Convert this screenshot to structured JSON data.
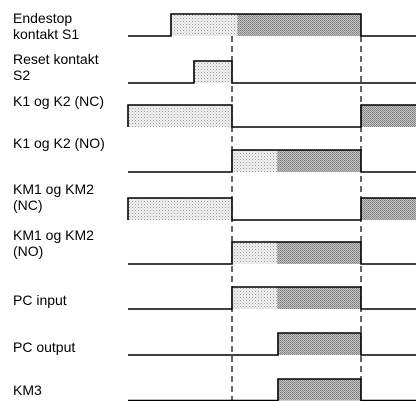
{
  "signals": [
    {
      "name": "sig-endestop",
      "label": "Endestop\nkontakt S1",
      "pulses": [
        {
          "from": 1.0,
          "to": 3.5,
          "shade": [
            "light",
            "dark"
          ]
        }
      ]
    },
    {
      "name": "sig-reset",
      "label": "Reset kontakt\nS2",
      "pulses": [
        {
          "from": 1.3,
          "to": 2.0,
          "shade": [
            "light"
          ]
        }
      ]
    },
    {
      "name": "sig-k1k2-nc",
      "label": "K1 og K2 (NC)",
      "pulses": [
        {
          "from": 0,
          "to": 2.0,
          "shade": [
            "light"
          ]
        },
        {
          "from": 3.5,
          "to": 4.0,
          "shade": [
            "dark"
          ]
        }
      ]
    },
    {
      "name": "sig-k1k2-no",
      "label": "K1 og K2 (NO)",
      "pulses": [
        {
          "from": 2.0,
          "to": 3.5,
          "shade": [
            "light",
            "dark"
          ]
        }
      ]
    },
    {
      "name": "sig-km1km2-nc",
      "label": "KM1 og KM2\n(NC)",
      "pulses": [
        {
          "from": 0,
          "to": 2.0,
          "shade": [
            "light"
          ]
        },
        {
          "from": 3.5,
          "to": 4.0,
          "shade": [
            "dark"
          ]
        }
      ]
    },
    {
      "name": "sig-km1km2-no",
      "label": "KM1 og KM2\n(NO)",
      "pulses": [
        {
          "from": 2.0,
          "to": 3.5,
          "shade": [
            "light",
            "dark"
          ]
        }
      ]
    },
    {
      "name": "sig-pc-input",
      "label": "PC input",
      "pulses": [
        {
          "from": 2.0,
          "to": 3.5,
          "shade": [
            "light",
            "dark"
          ]
        }
      ]
    },
    {
      "name": "sig-pc-output",
      "label": "PC output",
      "pulses": [
        {
          "from": 2.7,
          "to": 3.5,
          "shade": [
            "dark"
          ]
        }
      ]
    },
    {
      "name": "sig-km3",
      "label": "KM3",
      "pulses": [
        {
          "from": 2.7,
          "to": 3.5,
          "shade": [
            "dark"
          ]
        }
      ]
    }
  ],
  "marker_times": [
    2.0,
    3.5
  ],
  "colors": {
    "light": "#e2e2e2",
    "dark": "#a8a8a8",
    "line": "#000000"
  }
}
